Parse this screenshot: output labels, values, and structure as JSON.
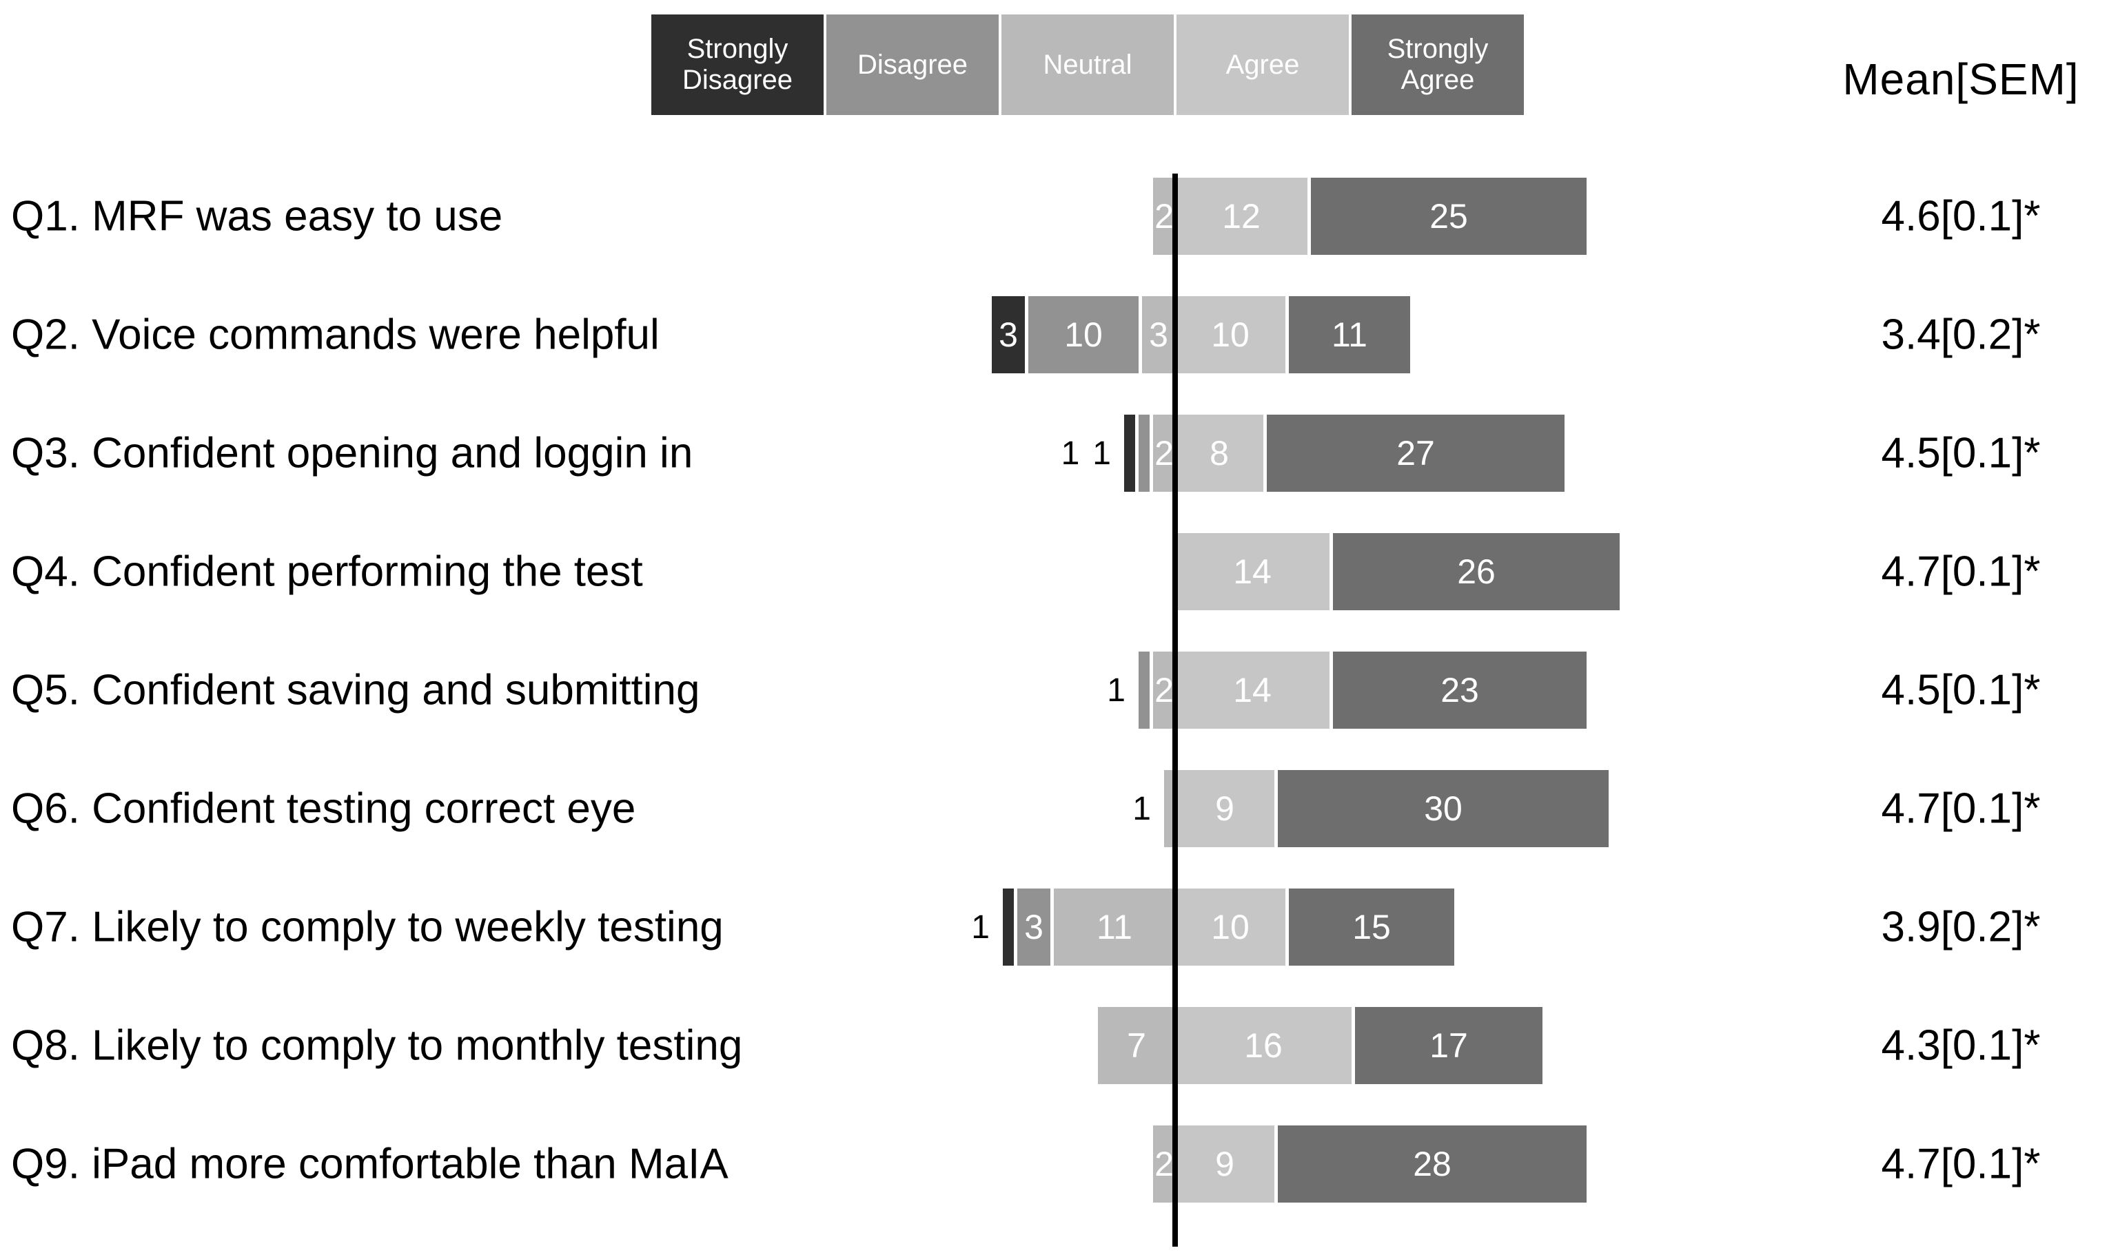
{
  "chart_data": {
    "type": "bar",
    "subtype": "diverging-stacked-likert",
    "orientation": "horizontal",
    "legend_position": "top",
    "mean_header": "Mean[SEM]",
    "categories": [
      "Strongly Disagree",
      "Disagree",
      "Neutral",
      "Agree",
      "Strongly Agree"
    ],
    "category_colors": [
      "#2f2f2f",
      "#929292",
      "#b9b9b9",
      "#c6c6c6",
      "#6e6e6e"
    ],
    "baseline_color": "#000000",
    "baseline_position": "boundary between Neutral and Agree",
    "questions": [
      "Q1. MRF was easy to use",
      "Q2. Voice commands were helpful",
      "Q3. Confident opening and loggin in",
      "Q4. Confident performing the test",
      "Q5. Confident saving and submitting",
      "Q6. Confident testing correct eye",
      "Q7. Likely to comply to weekly testing",
      "Q8. Likely to comply to monthly testing",
      "Q9. iPad more comfortable than MaIA"
    ],
    "series": [
      {
        "name": "Strongly Disagree",
        "values": [
          0,
          3,
          1,
          0,
          0,
          0,
          1,
          0,
          0
        ]
      },
      {
        "name": "Disagree",
        "values": [
          0,
          10,
          1,
          0,
          1,
          0,
          3,
          0,
          0
        ]
      },
      {
        "name": "Neutral",
        "values": [
          2,
          3,
          2,
          0,
          2,
          1,
          11,
          7,
          2
        ]
      },
      {
        "name": "Agree",
        "values": [
          12,
          10,
          8,
          14,
          14,
          9,
          10,
          16,
          9
        ]
      },
      {
        "name": "Strongly Agree",
        "values": [
          25,
          11,
          27,
          26,
          23,
          30,
          15,
          17,
          28
        ]
      }
    ],
    "means": [
      "4.6[0.1]*",
      "3.4[0.2]*",
      "4.5[0.1]*",
      "4.7[0.1]*",
      "4.5[0.1]*",
      "4.7[0.1]*",
      "3.9[0.2]*",
      "4.3[0.1]*",
      "4.7[0.1]*"
    ]
  }
}
